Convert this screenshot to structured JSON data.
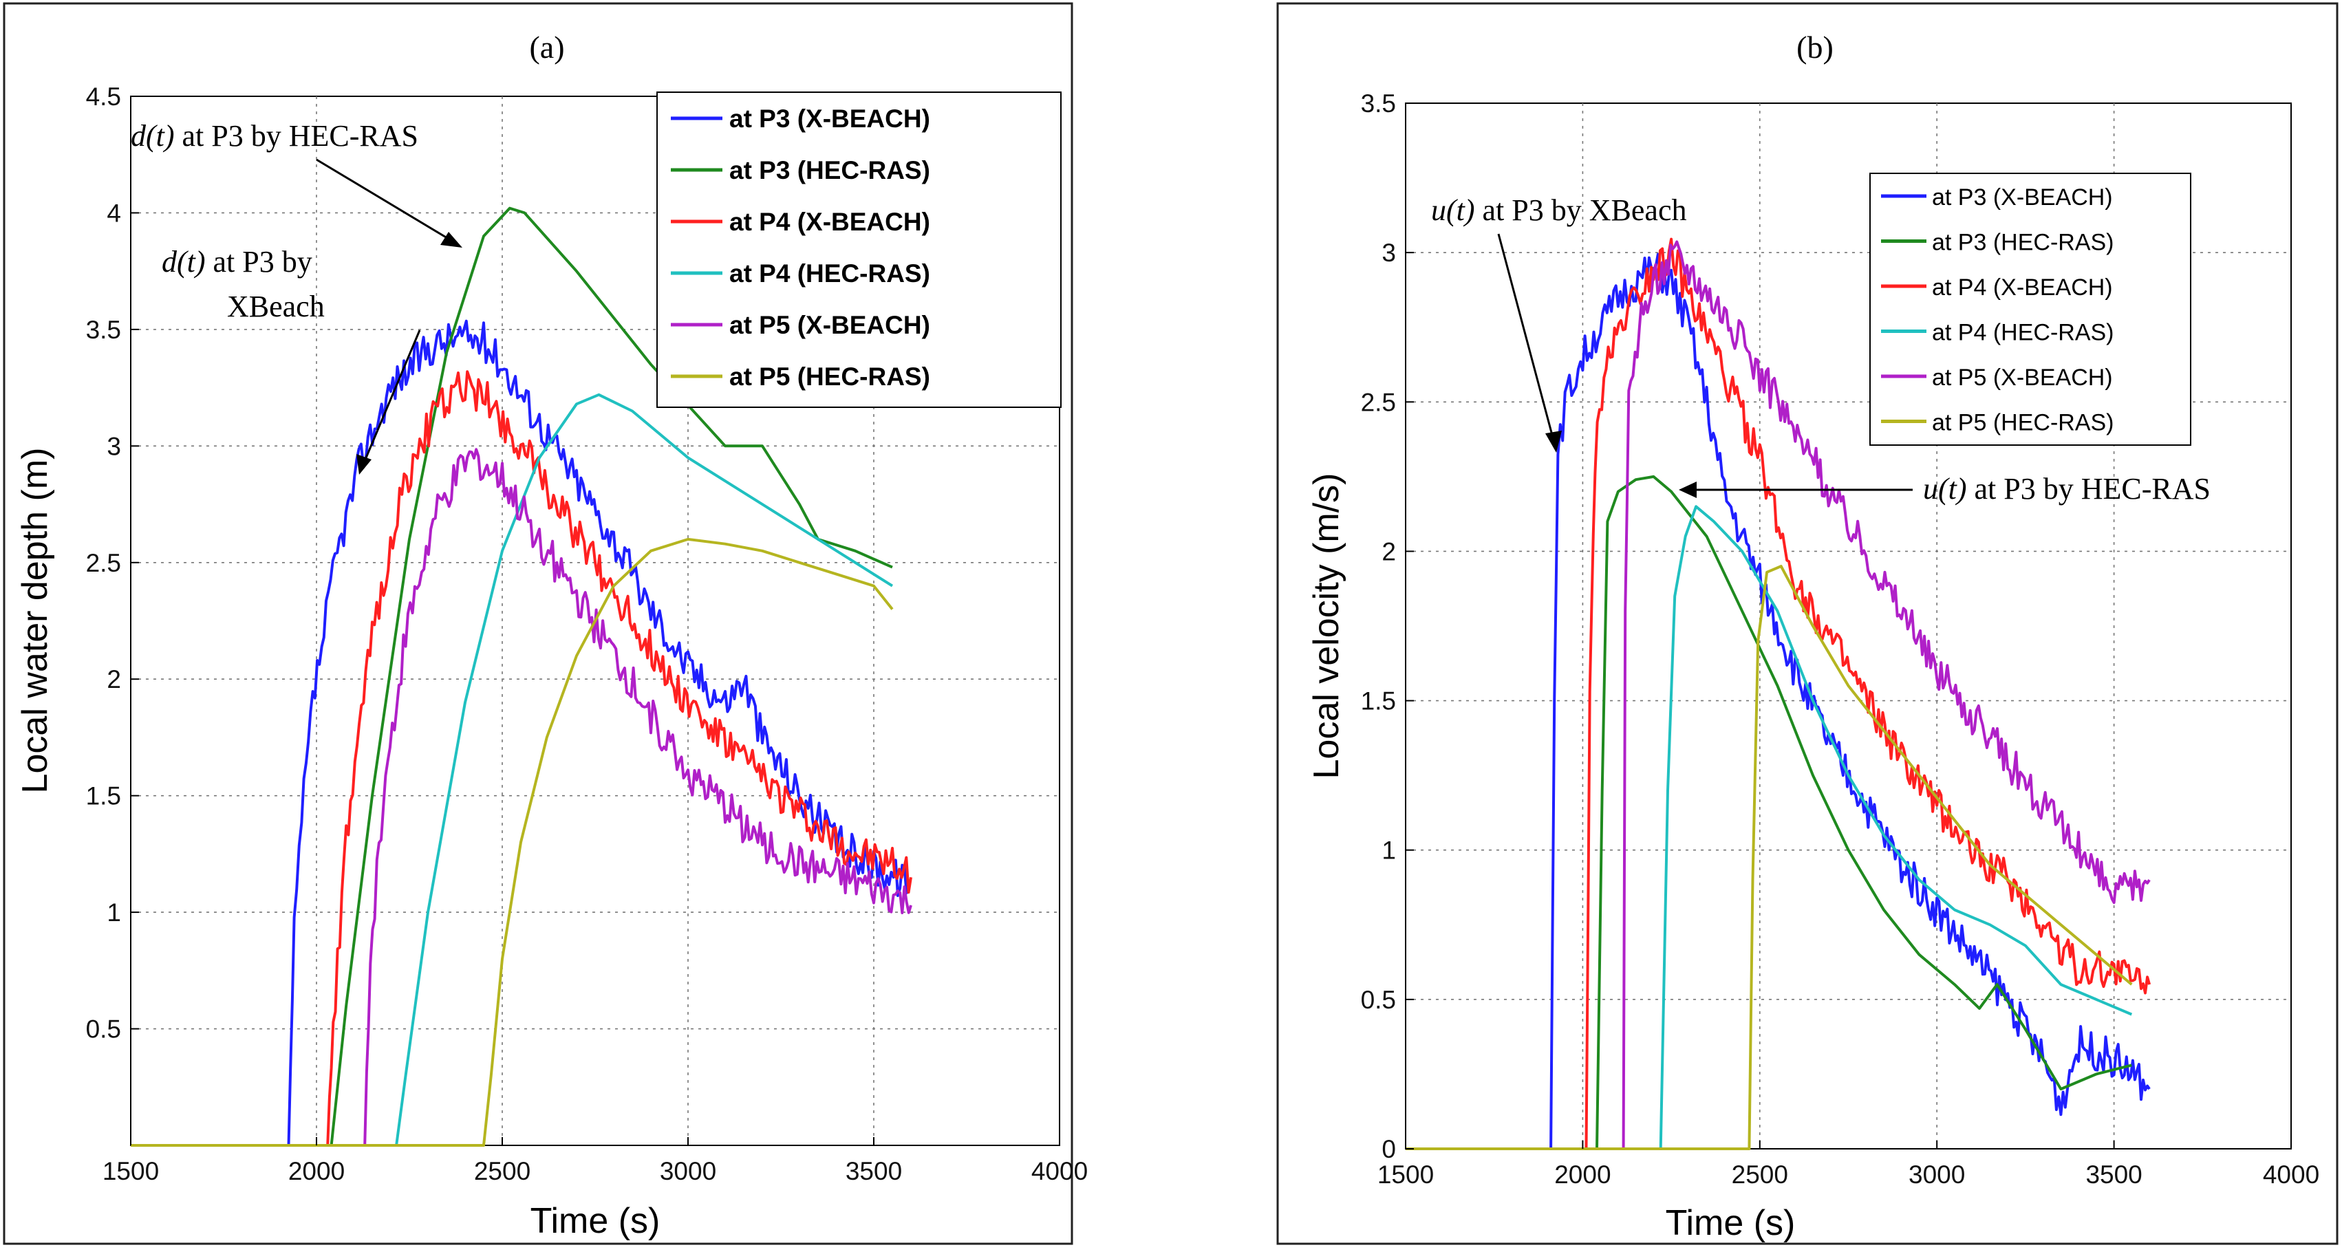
{
  "chart_data": [
    {
      "panel": "(a)",
      "type": "line",
      "xlabel": "Time (s)",
      "ylabel": "Local water depth (m)",
      "xlim": [
        1500,
        4000
      ],
      "ylim": [
        0,
        4.5
      ],
      "xticks": [
        "1500",
        "2000",
        "2500",
        "3000",
        "3500",
        "4000"
      ],
      "yticks": [
        "0.5",
        "1",
        "1.5",
        "2",
        "2.5",
        "3",
        "3.5",
        "4",
        "4.5"
      ],
      "grid": true,
      "legend_position": "top-right",
      "annotations": [
        {
          "it": "d(t)",
          "text": " at P3 by HEC-RAS"
        },
        {
          "it": "d(t)",
          "text": " at P3 by",
          "line2": "XBeach"
        }
      ],
      "series": [
        {
          "name": "at P3 (X-BEACH)",
          "color": "#1f1fff",
          "noisy": true,
          "points": [
            [
              1500,
              0
            ],
            [
              1925,
              0
            ],
            [
              1940,
              0.9
            ],
            [
              1960,
              1.4
            ],
            [
              1990,
              1.9
            ],
            [
              2050,
              2.5
            ],
            [
              2120,
              2.95
            ],
            [
              2200,
              3.25
            ],
            [
              2300,
              3.42
            ],
            [
              2380,
              3.47
            ],
            [
              2450,
              3.45
            ],
            [
              2500,
              3.35
            ],
            [
              2600,
              3.1
            ],
            [
              2700,
              2.85
            ],
            [
              2800,
              2.6
            ],
            [
              2900,
              2.3
            ],
            [
              3000,
              2.05
            ],
            [
              3100,
              1.9
            ],
            [
              3150,
              2.0
            ],
            [
              3200,
              1.75
            ],
            [
              3300,
              1.5
            ],
            [
              3400,
              1.3
            ],
            [
              3500,
              1.2
            ],
            [
              3600,
              1.12
            ]
          ]
        },
        {
          "name": "at P3 (HEC-RAS)",
          "color": "#1f8a1f",
          "noisy": false,
          "points": [
            [
              1500,
              0
            ],
            [
              2040,
              0
            ],
            [
              2080,
              0.6
            ],
            [
              2150,
              1.5
            ],
            [
              2250,
              2.6
            ],
            [
              2350,
              3.4
            ],
            [
              2450,
              3.9
            ],
            [
              2520,
              4.02
            ],
            [
              2560,
              4.0
            ],
            [
              2700,
              3.75
            ],
            [
              2900,
              3.35
            ],
            [
              3100,
              3.0
            ],
            [
              3200,
              3.0
            ],
            [
              3300,
              2.75
            ],
            [
              3350,
              2.6
            ],
            [
              3450,
              2.55
            ],
            [
              3550,
              2.48
            ]
          ]
        },
        {
          "name": "at P4 (X-BEACH)",
          "color": "#ff2020",
          "noisy": true,
          "points": [
            [
              1500,
              0
            ],
            [
              2030,
              0
            ],
            [
              2045,
              0.5
            ],
            [
              2080,
              1.3
            ],
            [
              2150,
              2.2
            ],
            [
              2230,
              2.8
            ],
            [
              2320,
              3.15
            ],
            [
              2400,
              3.26
            ],
            [
              2460,
              3.2
            ],
            [
              2550,
              3.0
            ],
            [
              2650,
              2.75
            ],
            [
              2750,
              2.5
            ],
            [
              2850,
              2.25
            ],
            [
              2950,
              2.0
            ],
            [
              3050,
              1.8
            ],
            [
              3150,
              1.65
            ],
            [
              3250,
              1.5
            ],
            [
              3350,
              1.35
            ],
            [
              3450,
              1.25
            ],
            [
              3550,
              1.2
            ],
            [
              3600,
              1.15
            ]
          ]
        },
        {
          "name": "at P4 (HEC-RAS)",
          "color": "#20c0c0",
          "noisy": false,
          "points": [
            [
              1500,
              0
            ],
            [
              2215,
              0
            ],
            [
              2240,
              0.3
            ],
            [
              2300,
              1.0
            ],
            [
              2400,
              1.9
            ],
            [
              2500,
              2.55
            ],
            [
              2600,
              2.95
            ],
            [
              2700,
              3.18
            ],
            [
              2760,
              3.22
            ],
            [
              2850,
              3.15
            ],
            [
              3000,
              2.95
            ],
            [
              3200,
              2.75
            ],
            [
              3400,
              2.55
            ],
            [
              3550,
              2.4
            ]
          ]
        },
        {
          "name": "at P5 (X-BEACH)",
          "color": "#b020c8",
          "noisy": true,
          "points": [
            [
              1500,
              0
            ],
            [
              2130,
              0
            ],
            [
              2145,
              0.8
            ],
            [
              2180,
              1.5
            ],
            [
              2240,
              2.2
            ],
            [
              2320,
              2.7
            ],
            [
              2400,
              2.93
            ],
            [
              2430,
              2.95
            ],
            [
              2500,
              2.85
            ],
            [
              2600,
              2.6
            ],
            [
              2700,
              2.35
            ],
            [
              2800,
              2.1
            ],
            [
              2900,
              1.85
            ],
            [
              3000,
              1.6
            ],
            [
              3100,
              1.45
            ],
            [
              3200,
              1.3
            ],
            [
              3300,
              1.2
            ],
            [
              3400,
              1.15
            ],
            [
              3500,
              1.1
            ],
            [
              3600,
              1.03
            ]
          ]
        },
        {
          "name": "at P5 (HEC-RAS)",
          "color": "#b5b520",
          "noisy": false,
          "points": [
            [
              1500,
              0
            ],
            [
              2450,
              0
            ],
            [
              2470,
              0.3
            ],
            [
              2500,
              0.8
            ],
            [
              2550,
              1.3
            ],
            [
              2620,
              1.75
            ],
            [
              2700,
              2.1
            ],
            [
              2800,
              2.4
            ],
            [
              2900,
              2.55
            ],
            [
              3000,
              2.6
            ],
            [
              3100,
              2.58
            ],
            [
              3200,
              2.55
            ],
            [
              3300,
              2.5
            ],
            [
              3400,
              2.45
            ],
            [
              3500,
              2.4
            ],
            [
              3550,
              2.3
            ]
          ]
        }
      ]
    },
    {
      "panel": "(b)",
      "type": "line",
      "xlabel": "Time (s)",
      "ylabel": "Local velocity (m/s)",
      "xlim": [
        1500,
        4000
      ],
      "ylim": [
        0,
        3.5
      ],
      "xticks": [
        "1500",
        "2000",
        "2500",
        "3000",
        "3500",
        "4000"
      ],
      "yticks": [
        "0",
        "0.5",
        "1",
        "1.5",
        "2",
        "2.5",
        "3",
        "3.5"
      ],
      "grid": true,
      "legend_position": "top-right",
      "annotations": [
        {
          "it": "u(t)",
          "text": " at P3 by XBeach"
        },
        {
          "it": "u(t)",
          "text": " at P3 by HEC-RAS"
        }
      ],
      "series": [
        {
          "name": "at P3 (X-BEACH)",
          "color": "#1f1fff",
          "noisy": true,
          "points": [
            [
              1500,
              0
            ],
            [
              1910,
              0
            ],
            [
              1920,
              1.5
            ],
            [
              1930,
              2.3
            ],
            [
              1950,
              2.5
            ],
            [
              2000,
              2.65
            ],
            [
              2050,
              2.75
            ],
            [
              2100,
              2.85
            ],
            [
              2150,
              2.9
            ],
            [
              2200,
              2.95
            ],
            [
              2250,
              2.9
            ],
            [
              2300,
              2.75
            ],
            [
              2350,
              2.5
            ],
            [
              2400,
              2.2
            ],
            [
              2450,
              2.05
            ],
            [
              2500,
              1.9
            ],
            [
              2600,
              1.6
            ],
            [
              2700,
              1.35
            ],
            [
              2800,
              1.15
            ],
            [
              2900,
              0.95
            ],
            [
              3000,
              0.8
            ],
            [
              3100,
              0.65
            ],
            [
              3200,
              0.5
            ],
            [
              3300,
              0.3
            ],
            [
              3350,
              0.15
            ],
            [
              3400,
              0.35
            ],
            [
              3500,
              0.3
            ],
            [
              3600,
              0.2
            ]
          ]
        },
        {
          "name": "at P3 (HEC-RAS)",
          "color": "#1f8a1f",
          "noisy": false,
          "points": [
            [
              1500,
              0
            ],
            [
              2040,
              0
            ],
            [
              2055,
              1.2
            ],
            [
              2070,
              2.1
            ],
            [
              2100,
              2.2
            ],
            [
              2150,
              2.24
            ],
            [
              2200,
              2.25
            ],
            [
              2250,
              2.2
            ],
            [
              2350,
              2.05
            ],
            [
              2450,
              1.8
            ],
            [
              2550,
              1.55
            ],
            [
              2650,
              1.25
            ],
            [
              2750,
              1.0
            ],
            [
              2850,
              0.8
            ],
            [
              2950,
              0.65
            ],
            [
              3050,
              0.55
            ],
            [
              3120,
              0.47
            ],
            [
              3170,
              0.55
            ],
            [
              3250,
              0.4
            ],
            [
              3350,
              0.2
            ],
            [
              3450,
              0.25
            ],
            [
              3550,
              0.28
            ]
          ]
        },
        {
          "name": "at P4 (X-BEACH)",
          "color": "#ff2020",
          "noisy": true,
          "points": [
            [
              1500,
              0
            ],
            [
              2010,
              0
            ],
            [
              2020,
              1.5
            ],
            [
              2035,
              2.3
            ],
            [
              2060,
              2.6
            ],
            [
              2120,
              2.8
            ],
            [
              2200,
              2.95
            ],
            [
              2250,
              3.0
            ],
            [
              2300,
              2.85
            ],
            [
              2400,
              2.6
            ],
            [
              2500,
              2.3
            ],
            [
              2600,
              1.9
            ],
            [
              2700,
              1.7
            ],
            [
              2800,
              1.5
            ],
            [
              2900,
              1.3
            ],
            [
              3000,
              1.15
            ],
            [
              3100,
              1.0
            ],
            [
              3200,
              0.9
            ],
            [
              3300,
              0.75
            ],
            [
              3400,
              0.6
            ],
            [
              3500,
              0.6
            ],
            [
              3600,
              0.55
            ]
          ]
        },
        {
          "name": "at P4 (HEC-RAS)",
          "color": "#20c0c0",
          "noisy": false,
          "points": [
            [
              1500,
              0
            ],
            [
              2220,
              0
            ],
            [
              2240,
              1.2
            ],
            [
              2260,
              1.85
            ],
            [
              2290,
              2.05
            ],
            [
              2320,
              2.15
            ],
            [
              2370,
              2.1
            ],
            [
              2450,
              2.0
            ],
            [
              2550,
              1.8
            ],
            [
              2650,
              1.5
            ],
            [
              2750,
              1.25
            ],
            [
              2850,
              1.05
            ],
            [
              2950,
              0.9
            ],
            [
              3050,
              0.8
            ],
            [
              3150,
              0.75
            ],
            [
              3250,
              0.68
            ],
            [
              3350,
              0.55
            ],
            [
              3450,
              0.5
            ],
            [
              3550,
              0.45
            ]
          ]
        },
        {
          "name": "at P5 (X-BEACH)",
          "color": "#b020c8",
          "noisy": true,
          "points": [
            [
              1500,
              0
            ],
            [
              2115,
              0
            ],
            [
              2120,
              1.8
            ],
            [
              2130,
              2.5
            ],
            [
              2160,
              2.75
            ],
            [
              2200,
              2.9
            ],
            [
              2260,
              3.0
            ],
            [
              2300,
              2.95
            ],
            [
              2400,
              2.8
            ],
            [
              2500,
              2.6
            ],
            [
              2600,
              2.4
            ],
            [
              2700,
              2.2
            ],
            [
              2800,
              2.0
            ],
            [
              2900,
              1.8
            ],
            [
              3000,
              1.6
            ],
            [
              3100,
              1.45
            ],
            [
              3200,
              1.3
            ],
            [
              3300,
              1.15
            ],
            [
              3400,
              1.0
            ],
            [
              3500,
              0.85
            ],
            [
              3600,
              0.9
            ]
          ]
        },
        {
          "name": "at P5 (HEC-RAS)",
          "color": "#b5b520",
          "noisy": false,
          "points": [
            [
              1500,
              0
            ],
            [
              2470,
              0
            ],
            [
              2480,
              0.9
            ],
            [
              2495,
              1.7
            ],
            [
              2520,
              1.93
            ],
            [
              2560,
              1.95
            ],
            [
              2650,
              1.75
            ],
            [
              2750,
              1.55
            ],
            [
              2850,
              1.4
            ],
            [
              2950,
              1.25
            ],
            [
              3050,
              1.1
            ],
            [
              3150,
              0.95
            ],
            [
              3250,
              0.85
            ],
            [
              3350,
              0.75
            ],
            [
              3450,
              0.65
            ],
            [
              3550,
              0.55
            ]
          ]
        }
      ]
    }
  ]
}
